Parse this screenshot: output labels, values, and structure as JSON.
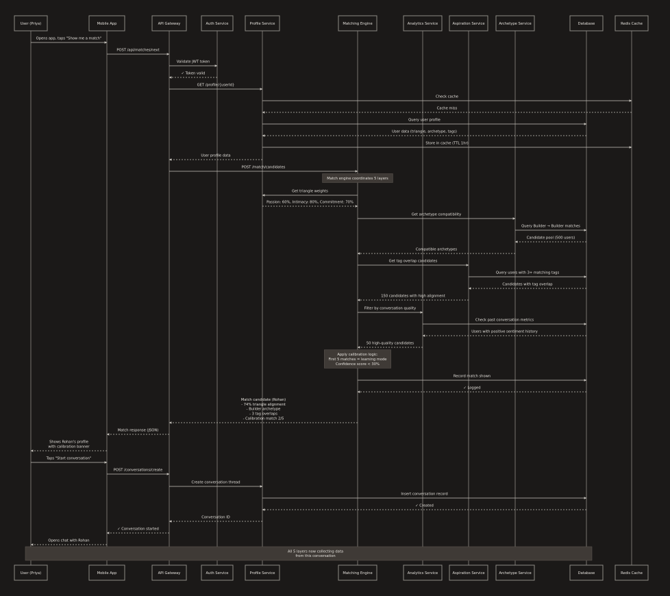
{
  "colors": {
    "background": "#1b1918",
    "box_border": "#8d8a85",
    "lifeline": "#77736e",
    "arrow": "#c9c5bf",
    "text": "#e4e1dc",
    "note_fill": "#3f3a36"
  },
  "participants": [
    {
      "id": "user",
      "label": "User (Priya)"
    },
    {
      "id": "app",
      "label": "Mobile App"
    },
    {
      "id": "gw",
      "label": "API Gateway"
    },
    {
      "id": "auth",
      "label": "Auth Service"
    },
    {
      "id": "prof",
      "label": "Profile Service"
    },
    {
      "id": "match",
      "label": "Matching Engine"
    },
    {
      "id": "anal",
      "label": "Analytics Service"
    },
    {
      "id": "asp",
      "label": "Aspiration Service"
    },
    {
      "id": "arch",
      "label": "Archetype Service"
    },
    {
      "id": "db",
      "label": "Database"
    },
    {
      "id": "redis",
      "label": "Redis Cache"
    }
  ],
  "steps": [
    {
      "kind": "msg",
      "from": "user",
      "to": "app",
      "style": "solid",
      "lines": [
        "Opens app, taps \"Show me a match\""
      ]
    },
    {
      "kind": "msg",
      "from": "app",
      "to": "gw",
      "style": "solid",
      "lines": [
        "POST /api/matches/next"
      ]
    },
    {
      "kind": "msg",
      "from": "gw",
      "to": "auth",
      "style": "solid",
      "lines": [
        "Validate JWT token"
      ]
    },
    {
      "kind": "msg",
      "from": "auth",
      "to": "gw",
      "style": "dashed",
      "lines": [
        "✓ Token valid"
      ]
    },
    {
      "kind": "msg",
      "from": "gw",
      "to": "prof",
      "style": "solid",
      "lines": [
        "GET /profile/{userId}"
      ]
    },
    {
      "kind": "msg",
      "from": "prof",
      "to": "redis",
      "style": "solid",
      "lines": [
        "Check cache"
      ]
    },
    {
      "kind": "msg",
      "from": "redis",
      "to": "prof",
      "style": "dashed",
      "lines": [
        "Cache miss"
      ]
    },
    {
      "kind": "msg",
      "from": "prof",
      "to": "db",
      "style": "solid",
      "lines": [
        "Query user profile"
      ]
    },
    {
      "kind": "msg",
      "from": "db",
      "to": "prof",
      "style": "dashed",
      "lines": [
        "User data (triangle, archetype, tags)"
      ]
    },
    {
      "kind": "msg",
      "from": "prof",
      "to": "redis",
      "style": "solid",
      "lines": [
        "Store in cache (TTL 1hr)"
      ]
    },
    {
      "kind": "msg",
      "from": "prof",
      "to": "gw",
      "style": "dashed",
      "lines": [
        "User profile data"
      ]
    },
    {
      "kind": "msg",
      "from": "gw",
      "to": "match",
      "style": "solid",
      "lines": [
        "POST /match/candidates"
      ]
    },
    {
      "kind": "note",
      "over": "match",
      "lines": [
        "Match engine coordinates 5 layers"
      ]
    },
    {
      "kind": "msg",
      "from": "match",
      "to": "prof",
      "style": "solid",
      "lines": [
        "Get triangle weights"
      ]
    },
    {
      "kind": "msg",
      "from": "prof",
      "to": "match",
      "style": "dashed",
      "lines": [
        "Passion: 60%, Intimacy: 80%, Commitment: 70%"
      ]
    },
    {
      "kind": "msg",
      "from": "match",
      "to": "arch",
      "style": "solid",
      "lines": [
        "Get archetype compatibility"
      ]
    },
    {
      "kind": "msg",
      "from": "arch",
      "to": "db",
      "style": "solid",
      "lines": [
        "Query Builder → Builder matches"
      ]
    },
    {
      "kind": "msg",
      "from": "db",
      "to": "arch",
      "style": "dashed",
      "lines": [
        "Candidate pool (500 users)"
      ]
    },
    {
      "kind": "msg",
      "from": "arch",
      "to": "match",
      "style": "dashed",
      "lines": [
        "Compatible archetypes"
      ]
    },
    {
      "kind": "msg",
      "from": "match",
      "to": "asp",
      "style": "solid",
      "lines": [
        "Get tag overlap candidates"
      ]
    },
    {
      "kind": "msg",
      "from": "asp",
      "to": "db",
      "style": "solid",
      "lines": [
        "Query users with 3+ matching tags"
      ]
    },
    {
      "kind": "msg",
      "from": "db",
      "to": "asp",
      "style": "dashed",
      "lines": [
        "Candidates with tag overlap"
      ]
    },
    {
      "kind": "msg",
      "from": "asp",
      "to": "match",
      "style": "dashed",
      "lines": [
        "150 candidates with high alignment"
      ]
    },
    {
      "kind": "msg",
      "from": "match",
      "to": "anal",
      "style": "solid",
      "lines": [
        "Filter by conversation quality"
      ]
    },
    {
      "kind": "msg",
      "from": "anal",
      "to": "db",
      "style": "solid",
      "lines": [
        "Check past conversation metrics"
      ]
    },
    {
      "kind": "msg",
      "from": "db",
      "to": "anal",
      "style": "dashed",
      "lines": [
        "Users with positive sentiment history"
      ]
    },
    {
      "kind": "msg",
      "from": "anal",
      "to": "match",
      "style": "dashed",
      "lines": [
        "50 high-quality candidates"
      ]
    },
    {
      "kind": "note",
      "over": "match",
      "lines": [
        "Apply calibration logic:",
        "First 5 matches = learning mode",
        "Confidence score < 30%"
      ]
    },
    {
      "kind": "msg",
      "from": "match",
      "to": "db",
      "style": "solid",
      "lines": [
        "Record match shown"
      ]
    },
    {
      "kind": "msg",
      "from": "db",
      "to": "match",
      "style": "dashed",
      "lines": [
        "✓ Logged"
      ]
    },
    {
      "kind": "msg",
      "from": "match",
      "to": "gw",
      "style": "dashed",
      "lines": [
        "Match candidate (Rohan)",
        "- 74% triangle alignment",
        "- Builder archetype",
        "- 3 tag overlaps",
        "- Calibration match 2/5"
      ]
    },
    {
      "kind": "msg",
      "from": "gw",
      "to": "app",
      "style": "dashed",
      "lines": [
        "Match response (JSON)"
      ]
    },
    {
      "kind": "msg",
      "from": "app",
      "to": "user",
      "style": "dashed",
      "lines": [
        "Shows Rohan's profile",
        "with calibration banner"
      ]
    },
    {
      "kind": "msg",
      "from": "user",
      "to": "app",
      "style": "solid",
      "lines": [
        "Taps \"Start conversation\""
      ]
    },
    {
      "kind": "msg",
      "from": "app",
      "to": "gw",
      "style": "solid",
      "lines": [
        "POST /conversations/create"
      ]
    },
    {
      "kind": "msg",
      "from": "gw",
      "to": "prof",
      "style": "solid",
      "lines": [
        "Create conversation thread"
      ]
    },
    {
      "kind": "msg",
      "from": "prof",
      "to": "db",
      "style": "solid",
      "lines": [
        "Insert conversation record"
      ]
    },
    {
      "kind": "msg",
      "from": "db",
      "to": "prof",
      "style": "dashed",
      "lines": [
        "✓ Created"
      ]
    },
    {
      "kind": "msg",
      "from": "prof",
      "to": "gw",
      "style": "dashed",
      "lines": [
        "Conversation ID"
      ]
    },
    {
      "kind": "msg",
      "from": "gw",
      "to": "app",
      "style": "dashed",
      "lines": [
        "✓ Conversation started"
      ]
    },
    {
      "kind": "msg",
      "from": "app",
      "to": "user",
      "style": "dashed",
      "lines": [
        "Opens chat with Rohan"
      ]
    },
    {
      "kind": "banner",
      "lines": [
        "All 5 layers now collecting data",
        "from this conversation"
      ]
    }
  ]
}
